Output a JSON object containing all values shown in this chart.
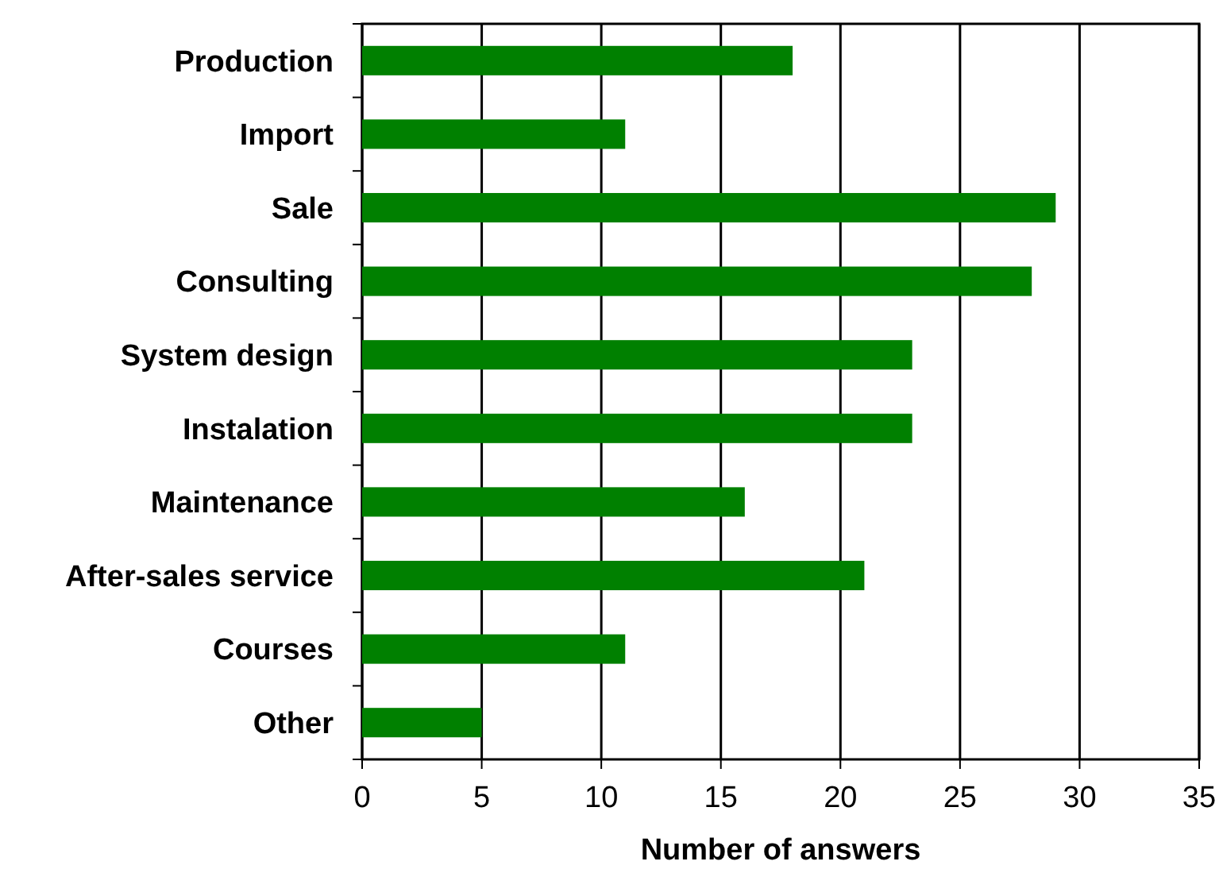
{
  "chart_data": {
    "type": "bar",
    "orientation": "horizontal",
    "xlabel": "Number of answers",
    "categories": [
      "Production",
      "Import",
      "Sale",
      "Consulting",
      "System design",
      "Instalation",
      "Maintenance",
      "After-sales service",
      "Courses",
      "Other"
    ],
    "values": [
      18,
      11,
      29,
      28,
      23,
      23,
      16,
      21,
      11,
      5
    ],
    "color": "#008000",
    "xlim": [
      0,
      35
    ],
    "xticks": [
      0,
      5,
      10,
      15,
      20,
      25,
      30,
      35
    ],
    "grid": "x"
  }
}
